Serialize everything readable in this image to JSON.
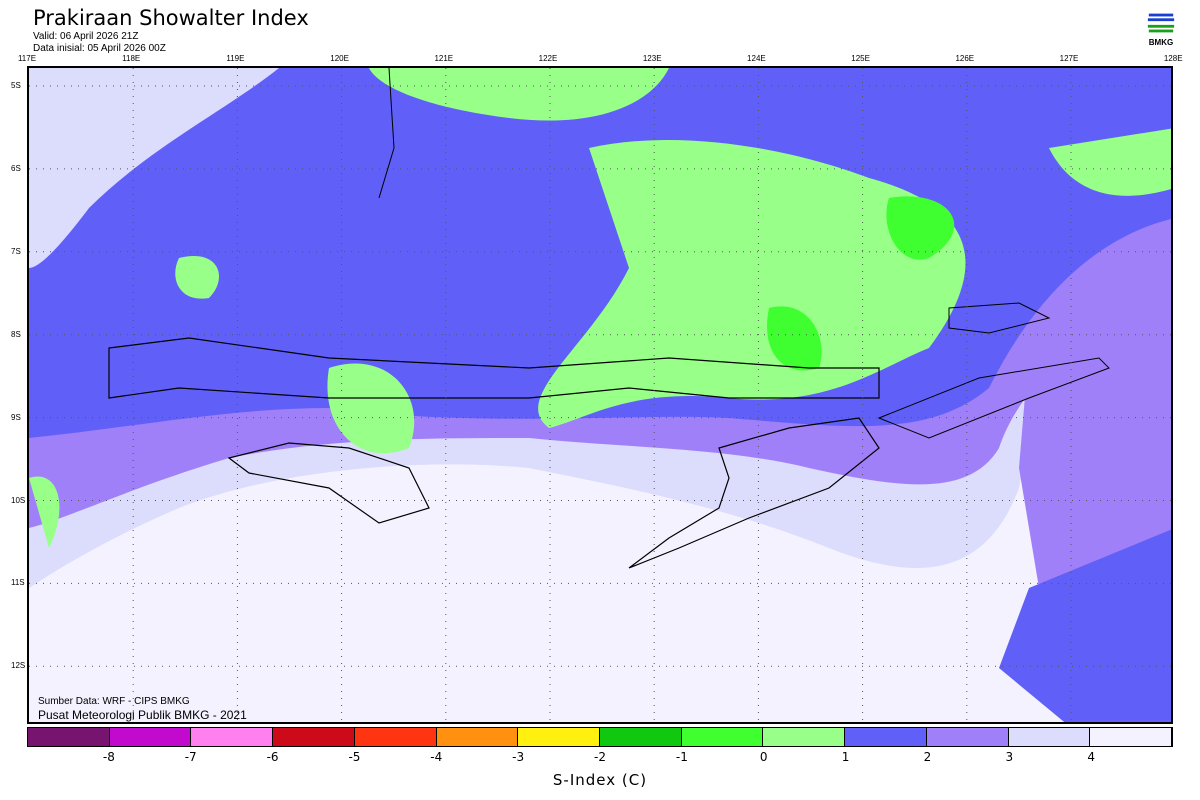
{
  "title": "Prakiraan Showalter Index",
  "valid": "Valid: 06 April 2026 21Z",
  "init": "Data inisial: 05 April 2026 00Z",
  "logo": "BMKG",
  "source": "Sumber Data: WRF - CIPS BMKG",
  "org": "Pusat Meteorologi Publik BMKG - 2021",
  "lon_labels": [
    "117E",
    "118E",
    "119E",
    "120E",
    "121E",
    "122E",
    "123E",
    "124E",
    "125E",
    "126E",
    "127E",
    "128E"
  ],
  "lat_labels": [
    "5S",
    "6S",
    "7S",
    "8S",
    "9S",
    "10S",
    "11S",
    "12S"
  ],
  "colorbar": {
    "label": "S-Index (C)",
    "ticks": [
      "-8",
      "-7",
      "-6",
      "-5",
      "-4",
      "-3",
      "-2",
      "-1",
      "0",
      "1",
      "2",
      "3",
      "4"
    ],
    "colors": [
      "#771470",
      "#c20ace",
      "#ff80ee",
      "#cc0a1a",
      "#ff3410",
      "#ff9010",
      "#fff010",
      "#10c810",
      "#40ff30",
      "#98ff88",
      "#6060f8",
      "#a080f8",
      "#dcdcfc",
      "#f4f2fe"
    ]
  }
}
